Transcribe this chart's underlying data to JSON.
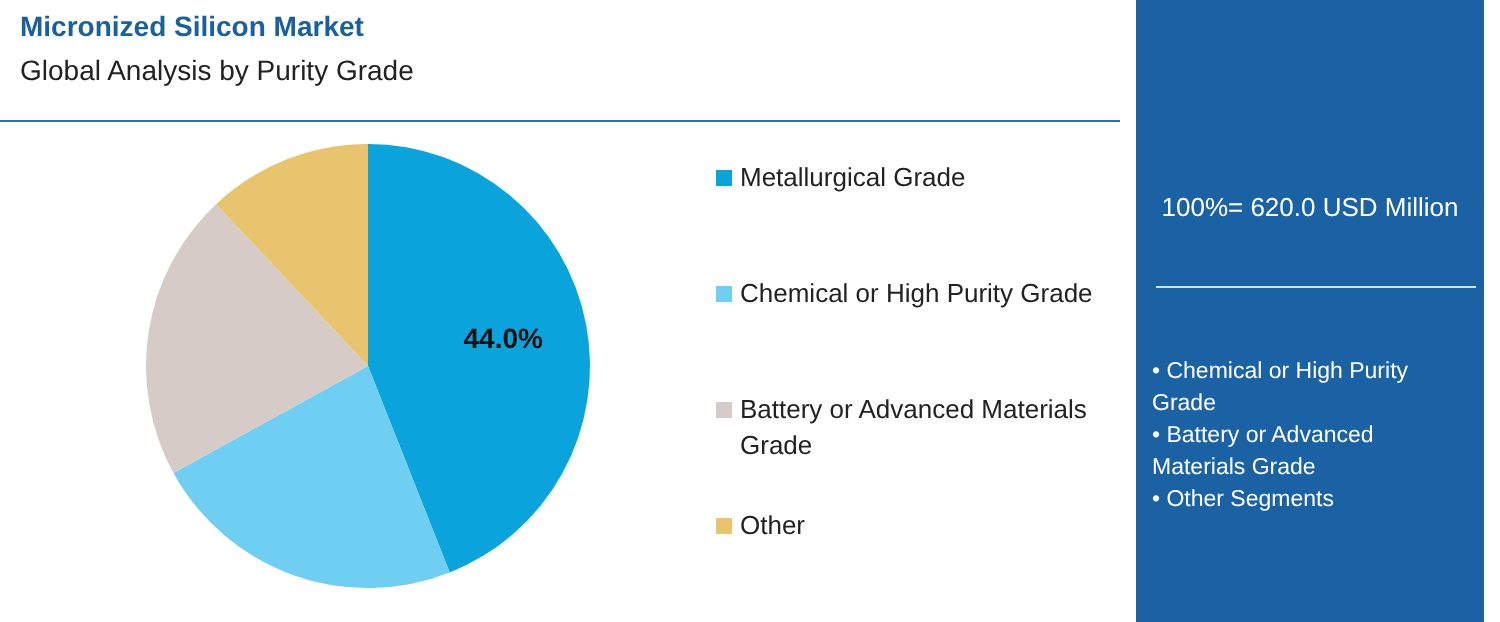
{
  "chart_data": {
    "type": "pie",
    "title": "Micronized Silicon Market",
    "subtitle": "Global Analysis by Purity Grade",
    "categories": [
      "Metallurgical Grade",
      "Chemical or High Purity Grade",
      "Battery or Advanced Materials Grade",
      "Other"
    ],
    "values": [
      44.0,
      23.0,
      21.0,
      12.0
    ],
    "colors": [
      "#0aa3dc",
      "#6ecff2",
      "#d6cbc6",
      "#e8c46e"
    ],
    "value_labels": [
      "44.0%",
      null,
      null,
      null
    ],
    "legend": "right",
    "annotations": [
      "100%= 620.0 USD Million",
      "• Chemical or High Purity Grade",
      "• Battery or Advanced Materials Grade",
      "• Other Segments"
    ]
  }
}
